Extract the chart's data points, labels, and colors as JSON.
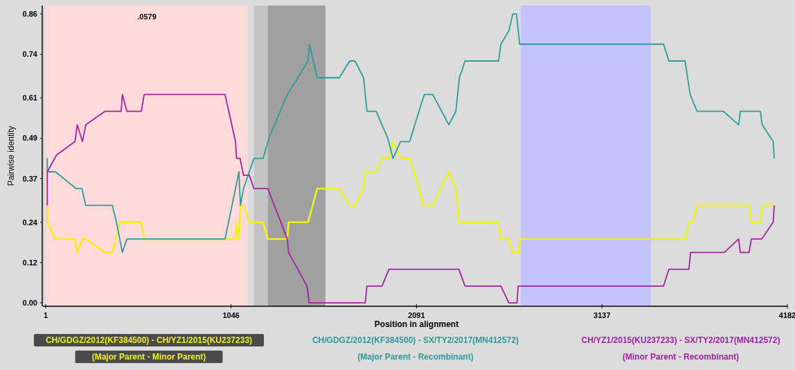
{
  "chart_data": {
    "type": "line",
    "xlabel": "Position in alignment",
    "ylabel": "Pairwise identity",
    "annotations": [
      ".0579"
    ],
    "xlim": [
      1,
      4182
    ],
    "xticks": [
      1,
      1046,
      2091,
      3137,
      4182
    ],
    "ylim": [
      -0.0102,
      0.885
    ],
    "yticks": [
      {
        "value": 0,
        "label": "0.00"
      },
      0.12,
      0.24,
      0.37,
      0.49,
      0.61,
      0.74,
      0.86
    ],
    "legend": "bottom",
    "grid": false,
    "bands": [
      {
        "axis": "x",
        "from": 1,
        "to": 1141,
        "color": "#ffdada"
      },
      {
        "axis": "x",
        "from": 1175,
        "to": 1253,
        "color": "#c4c4c4"
      },
      {
        "axis": "x",
        "from": 1253,
        "to": 1578,
        "color": "#a0a0a0"
      },
      {
        "axis": "x",
        "from": 2679,
        "to": 3412,
        "color": "#c4c4fc"
      }
    ],
    "series": [
      {
        "name": "CH/GDGZ/2012(KF384500) - CH/YZ1/2015(KU237233)\n(Major Parent - Minor Parent)",
        "color": "#f0f020",
        "x": [
          10,
          10,
          56,
          166,
          179,
          208,
          227,
          335,
          377,
          420,
          540,
          556,
          1012,
          1071,
          1077,
          1090,
          1099,
          1116,
          1149,
          1227,
          1253,
          1363,
          1370,
          1480,
          1532,
          1656,
          1715,
          1745,
          1793,
          1802,
          1864,
          1897,
          1936,
          1959,
          2001,
          2053,
          2105,
          2131,
          2183,
          2274,
          2313,
          2330,
          2554,
          2567,
          2612,
          2632,
          2668,
          2673,
          3605,
          3627,
          3649,
          3673,
          3966,
          3979,
          4030,
          4040,
          4108
        ],
        "values": [
          0.29,
          0.24,
          0.19,
          0.19,
          0.15,
          0.19,
          0.19,
          0.15,
          0.15,
          0.24,
          0.24,
          0.19,
          0.19,
          0.19,
          0.24,
          0.19,
          0.29,
          0.29,
          0.24,
          0.24,
          0.19,
          0.19,
          0.24,
          0.24,
          0.34,
          0.34,
          0.29,
          0.29,
          0.34,
          0.39,
          0.39,
          0.43,
          0.43,
          0.48,
          0.43,
          0.43,
          0.34,
          0.29,
          0.29,
          0.39,
          0.34,
          0.24,
          0.24,
          0.19,
          0.19,
          0.15,
          0.15,
          0.19,
          0.19,
          0.24,
          0.24,
          0.29,
          0.29,
          0.24,
          0.24,
          0.29,
          0.29
        ]
      },
      {
        "name": "CH/GDGZ/2012(KF384500) - SX/TY2/2017(MN412572)\n(Major Parent - Recombinant)",
        "color": "#2a9a9a",
        "x": [
          10,
          10,
          56,
          173,
          205,
          227,
          377,
          400,
          433,
          459,
          1012,
          1071,
          1090,
          1099,
          1116,
          1175,
          1227,
          1259,
          1363,
          1480,
          1487,
          1532,
          1656,
          1715,
          1745,
          1793,
          1812,
          1864,
          1929,
          1959,
          2001,
          2053,
          2105,
          2135,
          2183,
          2274,
          2313,
          2333,
          2365,
          2554,
          2567,
          2612,
          2634,
          2655,
          2673,
          3484,
          3514,
          3605,
          3634,
          3673,
          3822,
          3907,
          3917,
          4030,
          4040,
          4102,
          4108
        ],
        "values": [
          0.43,
          0.39,
          0.39,
          0.34,
          0.34,
          0.29,
          0.29,
          0.24,
          0.15,
          0.19,
          0.19,
          0.34,
          0.39,
          0.29,
          0.34,
          0.43,
          0.43,
          0.49,
          0.62,
          0.72,
          0.77,
          0.67,
          0.67,
          0.72,
          0.72,
          0.67,
          0.57,
          0.57,
          0.49,
          0.43,
          0.48,
          0.48,
          0.57,
          0.62,
          0.62,
          0.53,
          0.57,
          0.67,
          0.72,
          0.72,
          0.77,
          0.81,
          0.86,
          0.86,
          0.77,
          0.77,
          0.72,
          0.72,
          0.62,
          0.57,
          0.57,
          0.53,
          0.57,
          0.57,
          0.53,
          0.48,
          0.43
        ]
      },
      {
        "name": "CH/YZ1/2015(KU237233) - SX/TY2/2017(MN412572)\n(Minor Parent - Recombinant)",
        "color": "#a020a0",
        "x": [
          10,
          10,
          62,
          166,
          179,
          208,
          227,
          335,
          426,
          433,
          459,
          540,
          556,
          1012,
          1071,
          1077,
          1097,
          1116,
          1149,
          1175,
          1253,
          1363,
          1370,
          1474,
          1487,
          1802,
          1812,
          1897,
          1936,
          2330,
          2365,
          2567,
          2612,
          2658,
          2664,
          3484,
          3514,
          3627,
          3636,
          3826,
          3907,
          3917,
          3966,
          3979,
          4037,
          4102,
          4108
        ],
        "values": [
          0.29,
          0.39,
          0.44,
          0.48,
          0.53,
          0.48,
          0.53,
          0.57,
          0.57,
          0.62,
          0.57,
          0.57,
          0.62,
          0.62,
          0.48,
          0.43,
          0.43,
          0.38,
          0.38,
          0.34,
          0.34,
          0.19,
          0.15,
          0.05,
          0.0,
          0.0,
          0.05,
          0.05,
          0.1,
          0.1,
          0.05,
          0.05,
          0.0,
          0.0,
          0.05,
          0.05,
          0.1,
          0.1,
          0.15,
          0.15,
          0.19,
          0.15,
          0.15,
          0.19,
          0.19,
          0.24,
          0.29
        ]
      }
    ]
  }
}
